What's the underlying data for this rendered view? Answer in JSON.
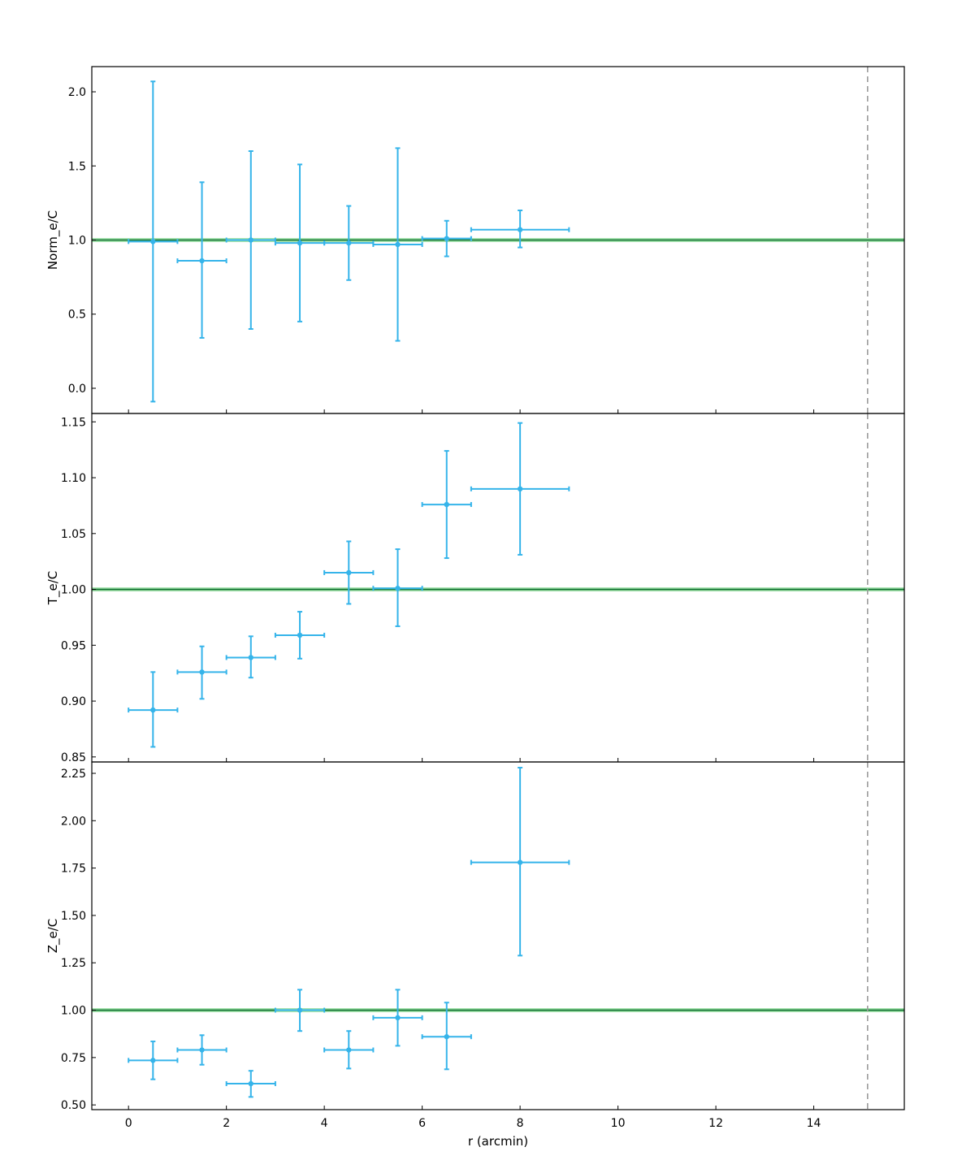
{
  "chart_data": [
    {
      "type": "scatter",
      "ylabel": "Norm_e/C",
      "ylim": [
        -0.17,
        2.17
      ],
      "xlim": [
        -0.75,
        15.85
      ],
      "yticks": [
        "0.0",
        "0.5",
        "1.0",
        "1.5",
        "2.0"
      ],
      "reference_line": 1.0,
      "vertical_line_x": 15.1,
      "points": [
        {
          "x": 0.5,
          "y": 0.99,
          "xerr": 0.5,
          "ylo": -0.09,
          "yhi": 2.07
        },
        {
          "x": 1.5,
          "y": 0.86,
          "xerr": 0.5,
          "ylo": 0.34,
          "yhi": 1.39
        },
        {
          "x": 2.5,
          "y": 1.0,
          "xerr": 0.5,
          "ylo": 0.4,
          "yhi": 1.6
        },
        {
          "x": 3.5,
          "y": 0.98,
          "xerr": 0.5,
          "ylo": 0.45,
          "yhi": 1.51
        },
        {
          "x": 4.5,
          "y": 0.98,
          "xerr": 0.5,
          "ylo": 0.73,
          "yhi": 1.23
        },
        {
          "x": 5.5,
          "y": 0.97,
          "xerr": 0.5,
          "ylo": 0.32,
          "yhi": 1.62
        },
        {
          "x": 6.5,
          "y": 1.01,
          "xerr": 0.5,
          "ylo": 0.89,
          "yhi": 1.13
        },
        {
          "x": 8.0,
          "y": 1.07,
          "xerr": 1.0,
          "ylo": 0.95,
          "yhi": 1.2
        }
      ]
    },
    {
      "type": "scatter",
      "ylabel": "T_e/C",
      "ylim": [
        0.8455,
        1.1575
      ],
      "xlim": [
        -0.75,
        15.85
      ],
      "yticks": [
        "0.85",
        "0.90",
        "0.95",
        "1.00",
        "1.05",
        "1.10",
        "1.15"
      ],
      "reference_line": 1.0,
      "vertical_line_x": 15.1,
      "points": [
        {
          "x": 0.5,
          "y": 0.892,
          "xerr": 0.5,
          "ylo": 0.859,
          "yhi": 0.926
        },
        {
          "x": 1.5,
          "y": 0.926,
          "xerr": 0.5,
          "ylo": 0.902,
          "yhi": 0.949
        },
        {
          "x": 2.5,
          "y": 0.939,
          "xerr": 0.5,
          "ylo": 0.921,
          "yhi": 0.958
        },
        {
          "x": 3.5,
          "y": 0.959,
          "xerr": 0.5,
          "ylo": 0.938,
          "yhi": 0.98
        },
        {
          "x": 4.5,
          "y": 1.015,
          "xerr": 0.5,
          "ylo": 0.987,
          "yhi": 1.043
        },
        {
          "x": 5.5,
          "y": 1.001,
          "xerr": 0.5,
          "ylo": 0.967,
          "yhi": 1.036
        },
        {
          "x": 6.5,
          "y": 1.076,
          "xerr": 0.5,
          "ylo": 1.028,
          "yhi": 1.124
        },
        {
          "x": 8.0,
          "y": 1.09,
          "xerr": 1.0,
          "ylo": 1.031,
          "yhi": 1.149
        }
      ]
    },
    {
      "type": "scatter",
      "ylabel": "Z_e/C",
      "xlabel": "r (arcmin)",
      "ylim": [
        0.475,
        2.31
      ],
      "xlim": [
        -0.75,
        15.85
      ],
      "yticks": [
        "0.50",
        "0.75",
        "1.00",
        "1.25",
        "1.50",
        "1.75",
        "2.00",
        "2.25"
      ],
      "xticks": [
        "0",
        "2",
        "4",
        "6",
        "8",
        "10",
        "12",
        "14"
      ],
      "reference_line": 1.0,
      "vertical_line_x": 15.1,
      "points": [
        {
          "x": 0.5,
          "y": 0.735,
          "xerr": 0.5,
          "ylo": 0.635,
          "yhi": 0.835
        },
        {
          "x": 1.5,
          "y": 0.79,
          "xerr": 0.5,
          "ylo": 0.712,
          "yhi": 0.868
        },
        {
          "x": 2.5,
          "y": 0.612,
          "xerr": 0.5,
          "ylo": 0.542,
          "yhi": 0.68
        },
        {
          "x": 3.5,
          "y": 1.0,
          "xerr": 0.5,
          "ylo": 0.89,
          "yhi": 1.108
        },
        {
          "x": 4.5,
          "y": 0.79,
          "xerr": 0.5,
          "ylo": 0.692,
          "yhi": 0.89
        },
        {
          "x": 5.5,
          "y": 0.96,
          "xerr": 0.5,
          "ylo": 0.812,
          "yhi": 1.108
        },
        {
          "x": 6.5,
          "y": 0.86,
          "xerr": 0.5,
          "ylo": 0.688,
          "yhi": 1.04
        },
        {
          "x": 8.0,
          "y": 1.78,
          "xerr": 1.0,
          "ylo": 1.288,
          "yhi": 2.28
        }
      ]
    }
  ],
  "colors": {
    "points": "#35b4ea",
    "reference_line": "#0b6e2a",
    "reference_band": "#7fd68b",
    "vertical_line": "#9b9b9b",
    "axes": "#000000"
  }
}
